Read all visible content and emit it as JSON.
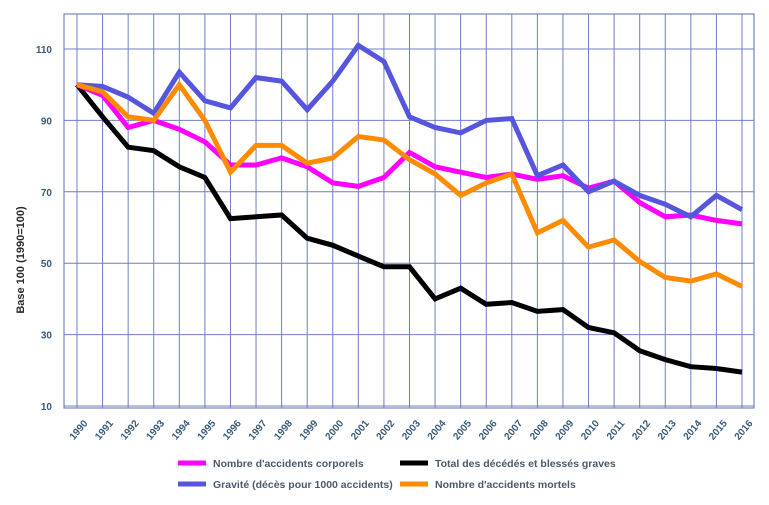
{
  "chart_data": {
    "type": "line",
    "ylabel": "Base 100 (1990=100)",
    "xlabel": "",
    "title": "",
    "ylim": [
      10,
      115
    ],
    "yticks": [
      10,
      30,
      50,
      70,
      90,
      110
    ],
    "x": [
      "1990",
      "1991",
      "1992",
      "1993",
      "1994",
      "1995",
      "1996",
      "1997",
      "1998",
      "1999",
      "2000",
      "2001",
      "2002",
      "2003",
      "2004",
      "2005",
      "2006",
      "2007",
      "2008",
      "2009",
      "2010",
      "2011",
      "2012",
      "2013",
      "2014",
      "2015",
      "2016"
    ],
    "grid": true,
    "legend_position": "bottom",
    "series": [
      {
        "name": "Nombre d'accidents corporels",
        "color": "#ff00ff",
        "values": [
          100,
          97,
          88,
          90,
          87.5,
          84,
          77.5,
          77.5,
          79.5,
          77,
          72.5,
          71.5,
          74,
          81,
          77,
          75.5,
          74,
          75,
          73.5,
          74.5,
          71,
          73,
          67,
          63,
          63.5,
          62,
          61
        ]
      },
      {
        "name": "Total des décédés et blessés graves",
        "color": "#000000",
        "values": [
          100,
          91,
          82.5,
          81.5,
          77,
          74,
          62.5,
          63,
          63.5,
          57,
          55,
          52,
          49,
          49,
          40,
          43,
          38.5,
          39,
          36.5,
          37,
          32,
          30.5,
          25.5,
          23,
          21,
          20.5,
          19.5
        ]
      },
      {
        "name": "Gravité (décès pour 1000 accidents)",
        "color": "#5555dd",
        "values": [
          100,
          99.5,
          96.5,
          92,
          103.5,
          95.5,
          93.5,
          102,
          101,
          93,
          101,
          111,
          106.5,
          91,
          88,
          86.5,
          90,
          90.5,
          74.5,
          77.5,
          70,
          73,
          69,
          66.5,
          63,
          69,
          65
        ]
      },
      {
        "name": "Nombre d'accidents mortels",
        "color": "#ff8c00",
        "values": [
          100,
          98,
          91,
          90,
          100,
          90,
          75.5,
          83,
          83,
          78,
          79.5,
          85.5,
          84.5,
          79,
          75,
          69,
          72.5,
          75,
          58.5,
          62,
          54.5,
          56.5,
          50.5,
          46,
          45,
          47,
          43.5
        ]
      }
    ]
  }
}
